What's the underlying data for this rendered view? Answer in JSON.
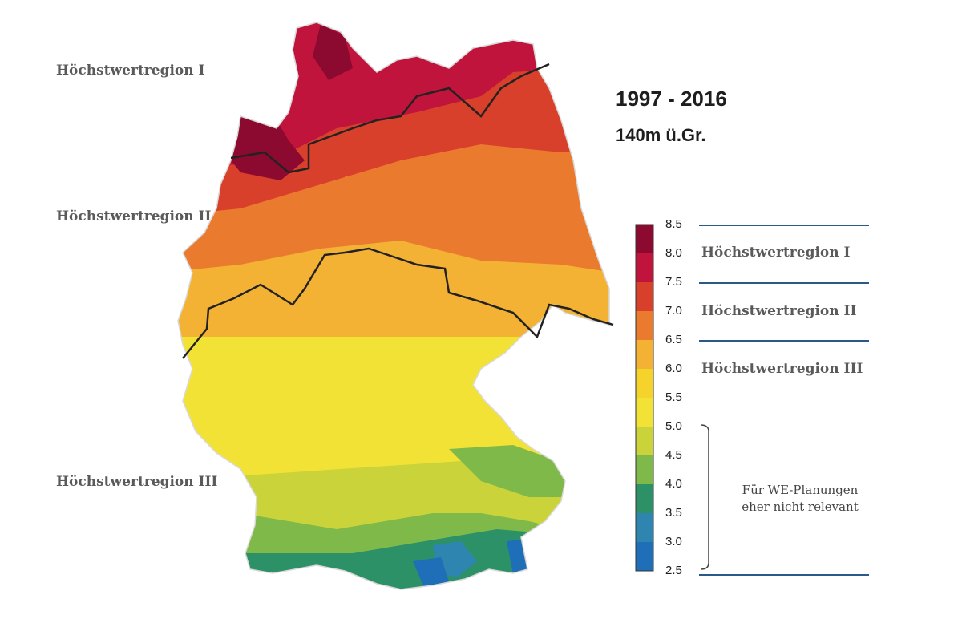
{
  "title": {
    "period": "1997 - 2016",
    "height": "140m ü.Gr."
  },
  "map_labels": {
    "region_1": "Höchstwertregion I",
    "region_2": "Höchstwertregion II",
    "region_3": "Höchstwertregion III"
  },
  "legend": {
    "ticks": [
      "8.5",
      "8.0",
      "7.5",
      "7.0",
      "6.5",
      "6.0",
      "5.5",
      "5.0",
      "4.5",
      "4.0",
      "3.5",
      "3.0",
      "2.5"
    ],
    "colors": [
      "#8c0a30",
      "#c0143c",
      "#d9402b",
      "#ea7a2e",
      "#f3b233",
      "#f5d32b",
      "#f3e236",
      "#cbd33a",
      "#7fb94a",
      "#2d9167",
      "#2e86b0",
      "#1f6fb8"
    ],
    "regions": {
      "region_1": "Höchstwertregion I",
      "region_2": "Höchstwertregion II",
      "region_3": "Höchstwertregion III"
    },
    "note_line1": "Für WE-Planungen",
    "note_line2": "eher nicht relevant"
  }
}
